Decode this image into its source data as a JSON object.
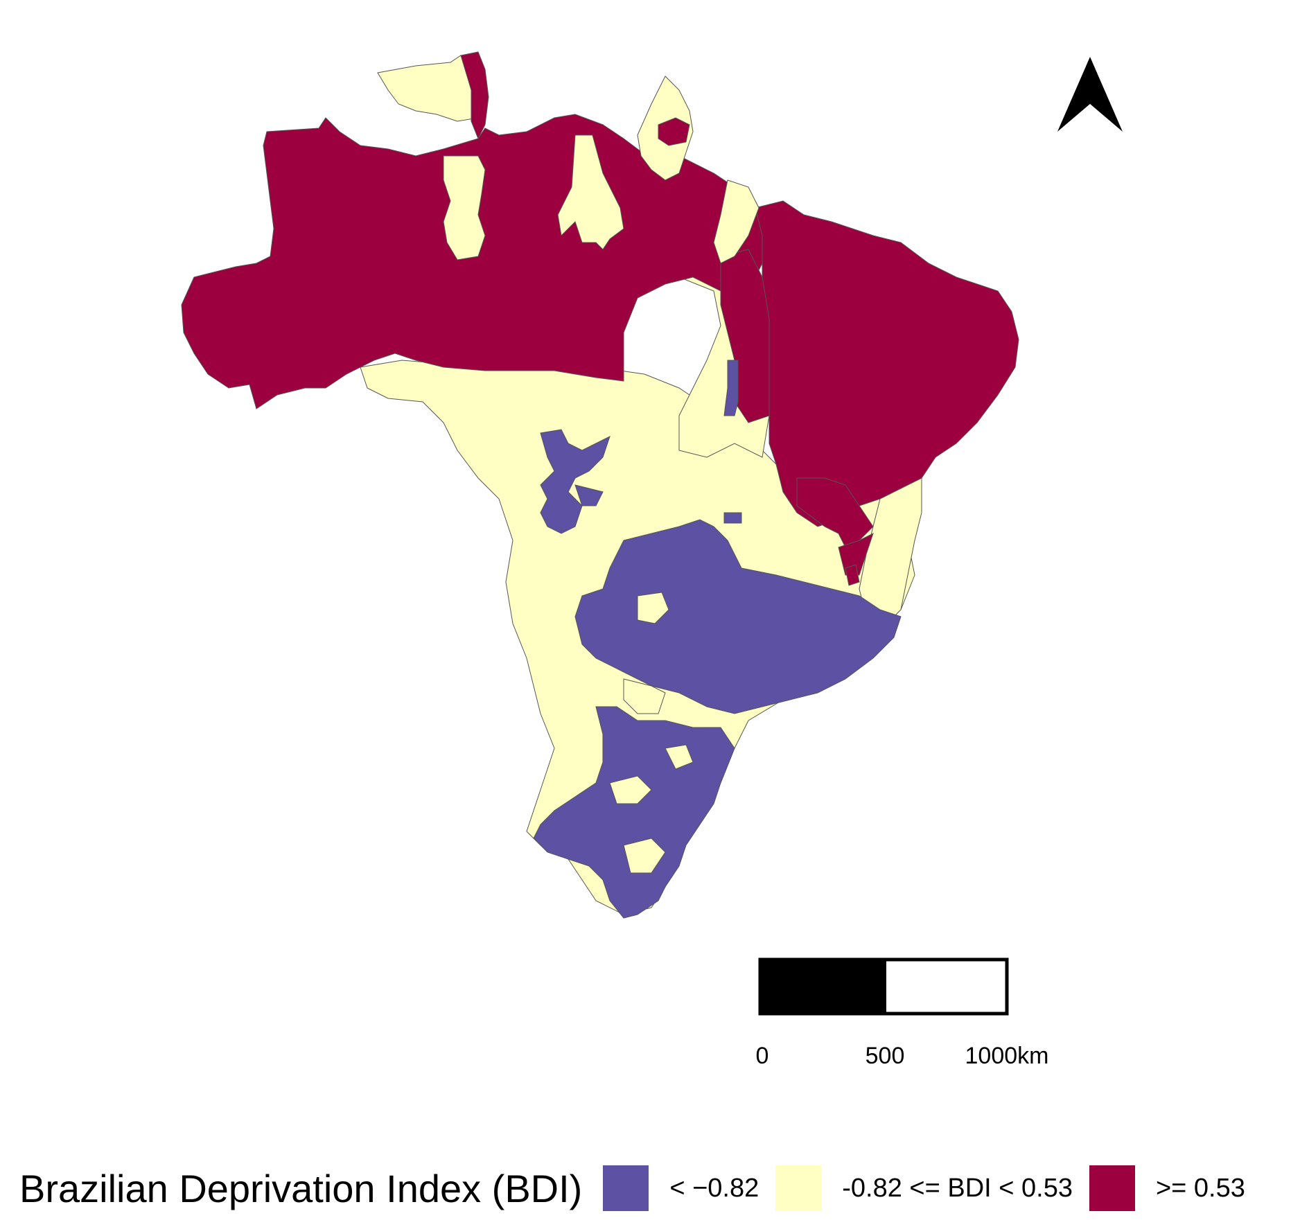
{
  "map": {
    "legend": {
      "title": "Brazilian Deprivation Index (BDI)",
      "items": [
        {
          "label": "< −0.82",
          "color": "#5c51a2"
        },
        {
          "label": "-0.82 <= BDI < 0.53",
          "color": "#ffffc4"
        },
        {
          "label": ">= 0.53",
          "color": "#9c003f"
        }
      ]
    },
    "scale_bar": {
      "labels": [
        "0",
        "500",
        "1000km"
      ]
    },
    "north_arrow": {
      "icon": "north-arrow-icon"
    },
    "colors": {
      "low": "#5c51a2",
      "mid": "#ffffc4",
      "high": "#9c003f",
      "border": "#555555"
    }
  }
}
